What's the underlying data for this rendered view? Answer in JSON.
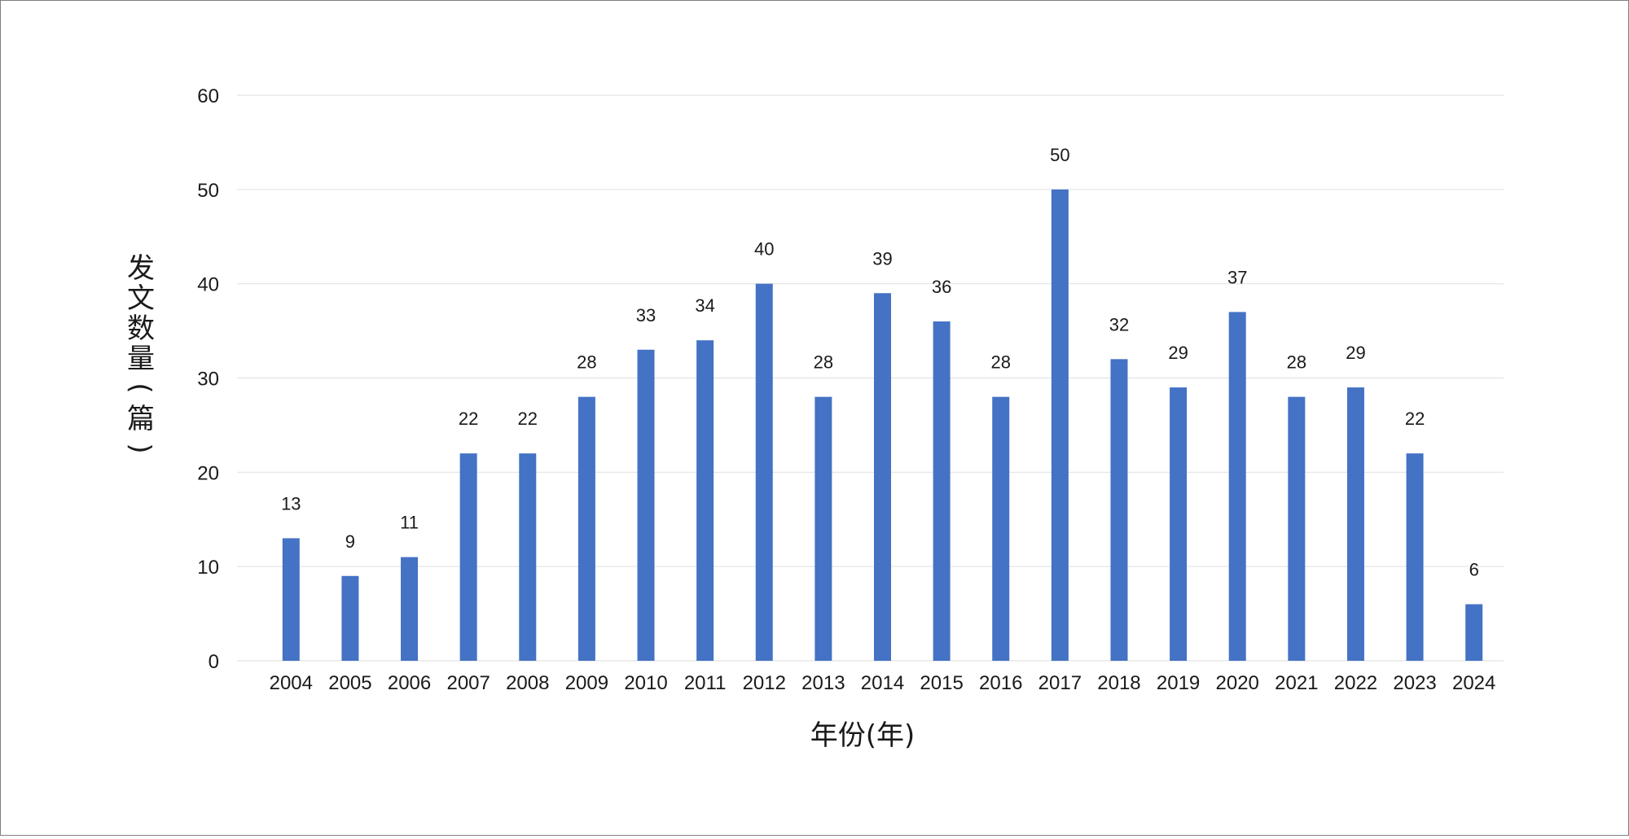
{
  "chart_data": {
    "type": "bar",
    "title": "",
    "xlabel": "年份(年)",
    "ylabel_chars": [
      "发",
      "文",
      "数",
      "量",
      "(",
      "篇",
      ")"
    ],
    "categories": [
      "2004",
      "2005",
      "2006",
      "2007",
      "2008",
      "2009",
      "2010",
      "2011",
      "2012",
      "2013",
      "2014",
      "2015",
      "2016",
      "2017",
      "2018",
      "2019",
      "2020",
      "2021",
      "2022",
      "2023",
      "2024"
    ],
    "values": [
      13,
      9,
      11,
      22,
      22,
      28,
      33,
      34,
      40,
      28,
      39,
      36,
      28,
      50,
      32,
      29,
      37,
      28,
      29,
      22,
      6
    ],
    "ylim": [
      0,
      60
    ],
    "yticks": [
      "0",
      "10",
      "20",
      "30",
      "40",
      "50",
      "60"
    ],
    "grid": true,
    "legend": "none",
    "bar_color": "#4472C4",
    "grid_color": "#e3e3e3"
  }
}
